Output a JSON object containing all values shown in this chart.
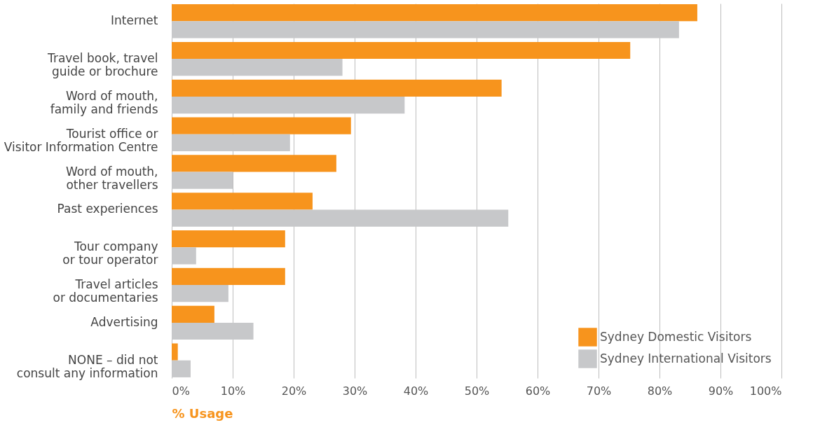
{
  "chart_data": {
    "type": "bar",
    "orientation": "horizontal",
    "xlabel": "% Usage",
    "categories": [
      "Internet",
      "Travel book, travel\nguide or brochure",
      "Word of mouth,\nfamily and friends",
      "Tourist office or\nVisitor Information Centre",
      "Word of mouth,\nother travellers",
      "Past experiences",
      "Tour company\nor tour operator",
      "Travel articles\nor documentaries",
      "Advertising",
      "NONE – did not\nconsult any information"
    ],
    "series": [
      {
        "name": "Sydney Domestic Visitors",
        "color": "#f7941d",
        "values": [
          86.2,
          75.2,
          54.1,
          29.4,
          27.0,
          23.1,
          18.6,
          18.6,
          7.0,
          1.0
        ]
      },
      {
        "name": "Sydney International Visitors",
        "color": "#c7c8ca",
        "values": [
          83.2,
          28.0,
          38.2,
          19.4,
          10.0,
          55.2,
          4.0,
          9.3,
          13.4,
          3.1
        ]
      }
    ],
    "xlim": [
      0,
      100
    ],
    "xticks": [
      {
        "value": 0,
        "label": "0%"
      },
      {
        "value": 10,
        "label": "10%"
      },
      {
        "value": 20,
        "label": "20%"
      },
      {
        "value": 30,
        "label": "30%"
      },
      {
        "value": 40,
        "label": "40%"
      },
      {
        "value": 50,
        "label": "50%"
      },
      {
        "value": 60,
        "label": "60%"
      },
      {
        "value": 70,
        "label": "70%"
      },
      {
        "value": 80,
        "label": "80%"
      },
      {
        "value": 90,
        "label": "90%"
      },
      {
        "value": 100,
        "label": "100%"
      }
    ],
    "grid": "x",
    "legend": "bottom right"
  }
}
